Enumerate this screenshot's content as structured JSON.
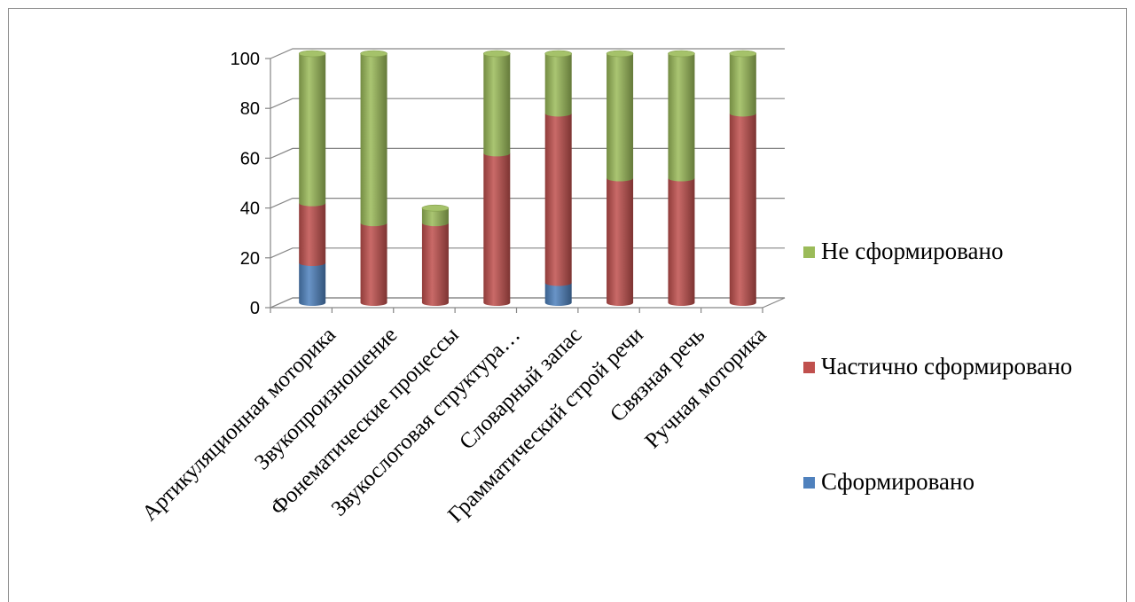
{
  "chart_data": {
    "type": "bar",
    "stacked": true,
    "style": "3d-cylinder",
    "categories": [
      "Артикуляционная моторика",
      "Звукопроизношение",
      "Фонематические процессы",
      "Звукослоговая структура…",
      "Словарный запас",
      "Грамматический строй речи",
      "Связная речь",
      "Ручная моторика"
    ],
    "series": [
      {
        "name": "Сформировано",
        "color": "#4f81bd",
        "values": [
          16,
          0,
          0,
          0,
          8,
          0,
          0,
          0
        ]
      },
      {
        "name": "Частично сформировано",
        "color": "#c0504d",
        "values": [
          24,
          32,
          32,
          60,
          68,
          50,
          50,
          76
        ]
      },
      {
        "name": "Не сформировано",
        "color": "#9bbb59",
        "values": [
          60,
          68,
          6,
          40,
          24,
          50,
          50,
          24
        ]
      }
    ],
    "yticks": [
      0,
      20,
      40,
      60,
      80,
      100
    ],
    "ylim": [
      0,
      100
    ],
    "grid": true,
    "legend_position": "right",
    "legend_order": [
      "Не сформировано",
      "Частично сформировано",
      "Сформировано"
    ]
  }
}
